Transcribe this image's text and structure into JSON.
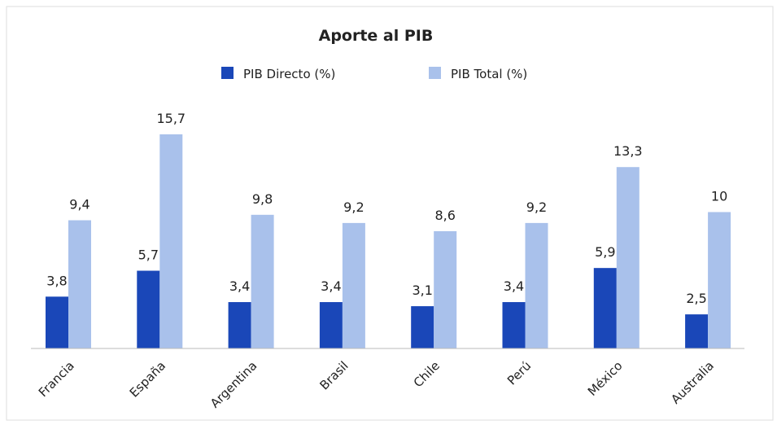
{
  "chart_data": {
    "type": "bar",
    "title": "Aporte al PIB",
    "categories": [
      "Francia",
      "España",
      "Argentina",
      "Brasil",
      "Chile",
      "Perú",
      "México",
      "Australia"
    ],
    "series": [
      {
        "name": "PIB Directo (%)",
        "color": "#1a47b8",
        "values": [
          3.8,
          5.7,
          3.4,
          3.4,
          3.1,
          3.4,
          5.9,
          2.5
        ],
        "value_labels": [
          "3,8",
          "5,7",
          "3,4",
          "3,4",
          "3,1",
          "3,4",
          "5,9",
          "2,5"
        ]
      },
      {
        "name": "PIB Total (%)",
        "color": "#a9c1eb",
        "values": [
          9.4,
          15.7,
          9.8,
          9.2,
          8.6,
          9.2,
          13.3,
          10
        ],
        "value_labels": [
          "9,4",
          "15,7",
          "9,8",
          "9,2",
          "8,6",
          "9,2",
          "13,3",
          "10"
        ]
      }
    ]
  }
}
